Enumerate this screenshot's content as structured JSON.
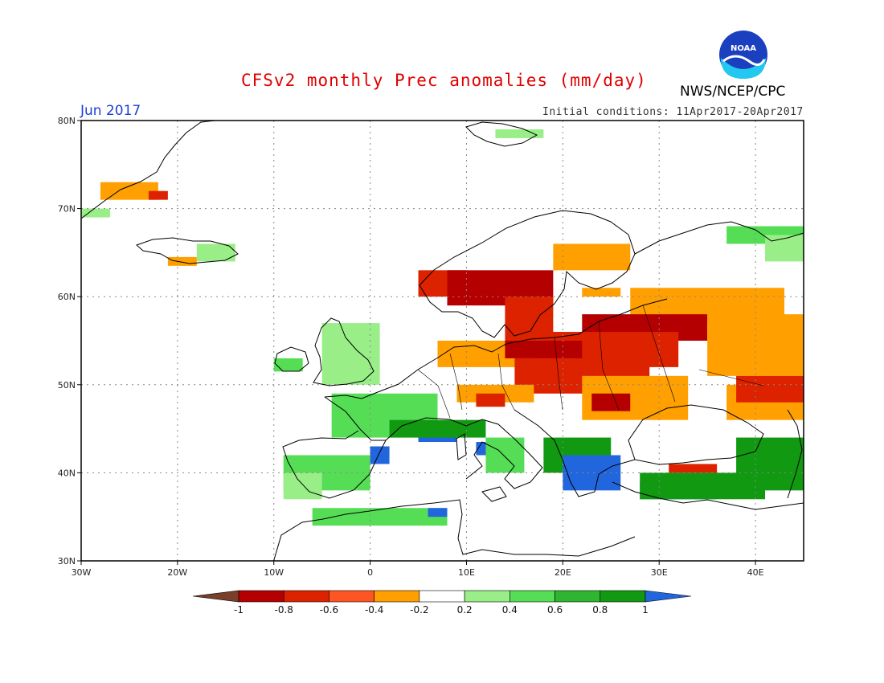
{
  "header": {
    "title": "CFSv2 monthly Prec anomalies (mm/day)",
    "agency": "NWS/NCEP/CPC",
    "month": "Jun 2017",
    "initial_conditions": "Initial conditions: 11Apr2017-20Apr2017",
    "logo_text": "NOAA"
  },
  "axes": {
    "lon_ticks": [
      {
        "value": -30,
        "label": "30W"
      },
      {
        "value": -20,
        "label": "20W"
      },
      {
        "value": -10,
        "label": "10W"
      },
      {
        "value": 0,
        "label": "0"
      },
      {
        "value": 10,
        "label": "10E"
      },
      {
        "value": 20,
        "label": "20E"
      },
      {
        "value": 30,
        "label": "30E"
      },
      {
        "value": 40,
        "label": "40E"
      }
    ],
    "lat_ticks": [
      {
        "value": 30,
        "label": "30N"
      },
      {
        "value": 40,
        "label": "40N"
      },
      {
        "value": 50,
        "label": "50N"
      },
      {
        "value": 60,
        "label": "60N"
      },
      {
        "value": 70,
        "label": "70N"
      },
      {
        "value": 80,
        "label": "80N"
      }
    ],
    "lon_range": [
      -30,
      45
    ],
    "lat_range": [
      30,
      80
    ],
    "grid": "dotted"
  },
  "colorbar": {
    "labels": [
      "-1",
      "-0.8",
      "-0.6",
      "-0.4",
      "-0.2",
      "0.2",
      "0.4",
      "0.6",
      "0.8",
      "1"
    ],
    "colors": [
      "#7a3f2a",
      "#b40000",
      "#dd2200",
      "#ff5522",
      "#ff9f00",
      "#ffffff",
      "#99ee88",
      "#55dd55",
      "#2fb52f",
      "#119911",
      "#2266dd"
    ]
  },
  "colors": {
    "coast": "#000000",
    "grid": "#888888",
    "title": "#e00000",
    "month": "#1f3fd6"
  },
  "anomaly_regions": [
    {
      "name": "greenland-orange",
      "color": "#ff9f00",
      "lon": [
        -28,
        -22
      ],
      "lat": [
        71,
        73
      ]
    },
    {
      "name": "greenland-red",
      "color": "#dd2200",
      "lon": [
        -23,
        -21
      ],
      "lat": [
        71,
        72
      ]
    },
    {
      "name": "greenland-west-green",
      "color": "#99ee88",
      "lon": [
        -30,
        -27
      ],
      "lat": [
        69,
        70
      ]
    },
    {
      "name": "iceland-green",
      "color": "#99ee88",
      "lon": [
        -18,
        -14
      ],
      "lat": [
        64,
        66
      ]
    },
    {
      "name": "iceland-orange",
      "color": "#ff9f00",
      "lon": [
        -21,
        -18
      ],
      "lat": [
        63.5,
        64.5
      ]
    },
    {
      "name": "svalbard-green",
      "color": "#99ee88",
      "lon": [
        13,
        18
      ],
      "lat": [
        78,
        79
      ]
    },
    {
      "name": "norway-coast-red",
      "color": "#dd2200",
      "lon": [
        5,
        10
      ],
      "lat": [
        60,
        63
      ]
    },
    {
      "name": "scandinavia-darkred",
      "color": "#b40000",
      "lon": [
        8,
        19
      ],
      "lat": [
        59,
        63
      ]
    },
    {
      "name": "sweden-red",
      "color": "#dd2200",
      "lon": [
        14,
        19
      ],
      "lat": [
        55,
        60
      ]
    },
    {
      "name": "finland-orange",
      "color": "#ff9f00",
      "lon": [
        19,
        27
      ],
      "lat": [
        63,
        66
      ]
    },
    {
      "name": "finland-orange2",
      "color": "#ff9f00",
      "lon": [
        22,
        26
      ],
      "lat": [
        60,
        61
      ]
    },
    {
      "name": "russia-north-orange",
      "color": "#ff9f00",
      "lon": [
        27,
        43
      ],
      "lat": [
        57,
        61
      ]
    },
    {
      "name": "baltic-darkred",
      "color": "#b40000",
      "lon": [
        22,
        35
      ],
      "lat": [
        55,
        58
      ]
    },
    {
      "name": "east-orange",
      "color": "#ff9f00",
      "lon": [
        35,
        45
      ],
      "lat": [
        51,
        58
      ]
    },
    {
      "name": "belarus-red",
      "color": "#dd2200",
      "lon": [
        17,
        32
      ],
      "lat": [
        52,
        56
      ]
    },
    {
      "name": "germany-orange",
      "color": "#ff9f00",
      "lon": [
        7,
        17
      ],
      "lat": [
        52,
        55
      ]
    },
    {
      "name": "poland-darkred",
      "color": "#b40000",
      "lon": [
        14,
        22
      ],
      "lat": [
        53,
        55
      ]
    },
    {
      "name": "central-red",
      "color": "#dd2200",
      "lon": [
        15,
        29
      ],
      "lat": [
        49,
        53
      ]
    },
    {
      "name": "czech-orange",
      "color": "#ff9f00",
      "lon": [
        9,
        17
      ],
      "lat": [
        48,
        50
      ]
    },
    {
      "name": "alps-red",
      "color": "#dd2200",
      "lon": [
        11,
        14
      ],
      "lat": [
        47.5,
        49
      ]
    },
    {
      "name": "ukraine-orange",
      "color": "#ff9f00",
      "lon": [
        22,
        33
      ],
      "lat": [
        46,
        51
      ]
    },
    {
      "name": "ukraine-darkred",
      "color": "#b40000",
      "lon": [
        23,
        27
      ],
      "lat": [
        47,
        49
      ]
    },
    {
      "name": "volga-orange",
      "color": "#ff9f00",
      "lon": [
        37,
        45
      ],
      "lat": [
        46,
        50
      ]
    },
    {
      "name": "volga-red",
      "color": "#dd2200",
      "lon": [
        38,
        45
      ],
      "lat": [
        48,
        51
      ]
    },
    {
      "name": "turkey-red",
      "color": "#dd2200",
      "lon": [
        31,
        36
      ],
      "lat": [
        40,
        41
      ]
    },
    {
      "name": "ireland-green",
      "color": "#55dd55",
      "lon": [
        -10,
        -7
      ],
      "lat": [
        51.5,
        53
      ]
    },
    {
      "name": "britain-green",
      "color": "#99ee88",
      "lon": [
        -5,
        1
      ],
      "lat": [
        50,
        57
      ]
    },
    {
      "name": "france-green",
      "color": "#55dd55",
      "lon": [
        -4,
        7
      ],
      "lat": [
        44,
        49
      ]
    },
    {
      "name": "iberia-green",
      "color": "#55dd55",
      "lon": [
        -9,
        0
      ],
      "lat": [
        38,
        42
      ]
    },
    {
      "name": "iberia-light",
      "color": "#99ee88",
      "lon": [
        -9,
        -5
      ],
      "lat": [
        37,
        40
      ]
    },
    {
      "name": "pyrenees-blue",
      "color": "#2266dd",
      "lon": [
        0,
        2
      ],
      "lat": [
        41,
        43
      ]
    },
    {
      "name": "alps-blue",
      "color": "#2266dd",
      "lon": [
        5,
        9
      ],
      "lat": [
        43.5,
        45
      ]
    },
    {
      "name": "alps-green",
      "color": "#119911",
      "lon": [
        2,
        12
      ],
      "lat": [
        44,
        46
      ]
    },
    {
      "name": "italy-blue",
      "color": "#2266dd",
      "lon": [
        11,
        13
      ],
      "lat": [
        42,
        43.5
      ]
    },
    {
      "name": "italy-green",
      "color": "#55dd55",
      "lon": [
        12,
        16
      ],
      "lat": [
        40,
        44
      ]
    },
    {
      "name": "balkans-green",
      "color": "#119911",
      "lon": [
        18,
        25
      ],
      "lat": [
        40,
        44
      ]
    },
    {
      "name": "balkans-blue",
      "color": "#2266dd",
      "lon": [
        20,
        26
      ],
      "lat": [
        38,
        42
      ]
    },
    {
      "name": "anatolia-blue",
      "color": "#2266dd",
      "lon": [
        28,
        36
      ],
      "lat": [
        37,
        39
      ]
    },
    {
      "name": "anatolia-green",
      "color": "#119911",
      "lon": [
        28,
        41
      ],
      "lat": [
        37,
        40
      ]
    },
    {
      "name": "caucasus-blue",
      "color": "#2266dd",
      "lon": [
        40,
        45
      ],
      "lat": [
        40,
        43
      ]
    },
    {
      "name": "caucasus-green",
      "color": "#119911",
      "lon": [
        38,
        45
      ],
      "lat": [
        38,
        44
      ]
    },
    {
      "name": "nafrica-green",
      "color": "#55dd55",
      "lon": [
        -6,
        8
      ],
      "lat": [
        34,
        36
      ]
    },
    {
      "name": "nafrica-blue",
      "color": "#2266dd",
      "lon": [
        6,
        8
      ],
      "lat": [
        35,
        36
      ]
    },
    {
      "name": "urals-green",
      "color": "#55dd55",
      "lon": [
        37,
        45
      ],
      "lat": [
        66,
        68
      ]
    },
    {
      "name": "urals-green2",
      "color": "#99ee88",
      "lon": [
        41,
        45
      ],
      "lat": [
        64,
        67
      ]
    }
  ]
}
